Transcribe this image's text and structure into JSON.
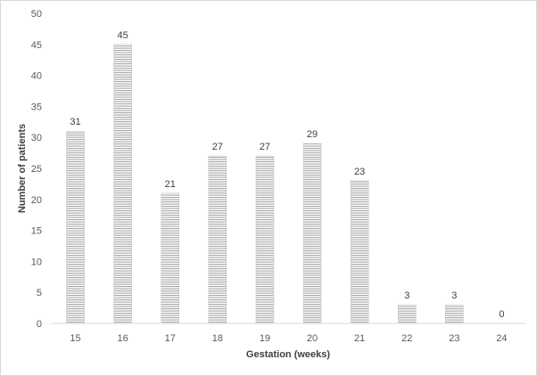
{
  "chart_data": {
    "type": "bar",
    "categories": [
      "15",
      "16",
      "17",
      "18",
      "19",
      "20",
      "21",
      "22",
      "23",
      "24"
    ],
    "values": [
      31,
      45,
      21,
      27,
      27,
      29,
      23,
      3,
      3,
      0
    ],
    "xlabel": "Gestation (weeks)",
    "ylabel": "Number of patients",
    "ylim": [
      0,
      50
    ],
    "yticks": [
      0,
      5,
      10,
      15,
      20,
      25,
      30,
      35,
      40,
      45,
      50
    ],
    "grid": false,
    "data_labels": true,
    "bar_fill": "horizontal-hatch",
    "colors": {
      "bar_stripe": "#a6a6a6",
      "bar_bg": "#ffffff",
      "axis": "#d9d9d9",
      "text": "#595959"
    }
  }
}
